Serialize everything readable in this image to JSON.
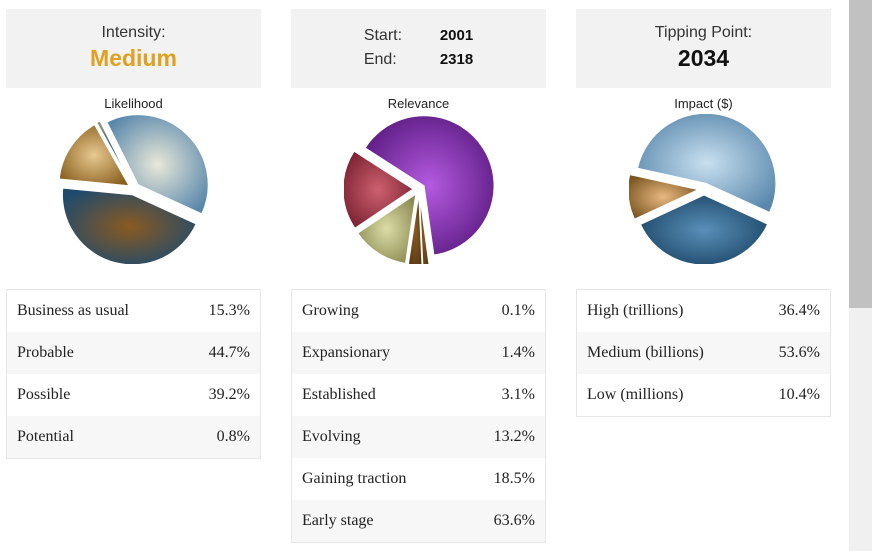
{
  "intensity": {
    "label": "Intensity:",
    "value": "Medium"
  },
  "dates": {
    "start_label": "Start:",
    "start_value": "2001",
    "end_label": "End:",
    "end_value": "2318"
  },
  "tipping": {
    "label": "Tipping Point:",
    "value": "2034"
  },
  "colors": {
    "intensity_accent": "#e0a020",
    "palette": [
      "#2e5f86",
      "#a9cbe0",
      "#c99a5a",
      "#8a3cb0",
      "#b04050",
      "#c8c890"
    ]
  },
  "chart_data": [
    {
      "type": "pie",
      "title": "Likelihood",
      "categories": [
        "Business as usual",
        "Probable",
        "Possible",
        "Potential"
      ],
      "values": [
        15.3,
        44.7,
        39.2,
        0.8
      ],
      "value_labels": [
        "15.3%",
        "44.7%",
        "39.2%",
        "0.8%"
      ]
    },
    {
      "type": "pie",
      "title": "Relevance",
      "categories": [
        "Growing",
        "Expansionary",
        "Established",
        "Evolving",
        "Gaining traction",
        "Early stage"
      ],
      "values": [
        0.1,
        1.4,
        3.1,
        13.2,
        18.5,
        63.6
      ],
      "value_labels": [
        "0.1%",
        "1.4%",
        "3.1%",
        "13.2%",
        "18.5%",
        "63.6%"
      ]
    },
    {
      "type": "pie",
      "title": "Impact ($)",
      "categories": [
        "High (trillions)",
        "Medium (billions)",
        "Low (millions)"
      ],
      "values": [
        36.4,
        53.6,
        10.4
      ],
      "value_labels": [
        "36.4%",
        "53.6%",
        "10.4%"
      ]
    }
  ]
}
